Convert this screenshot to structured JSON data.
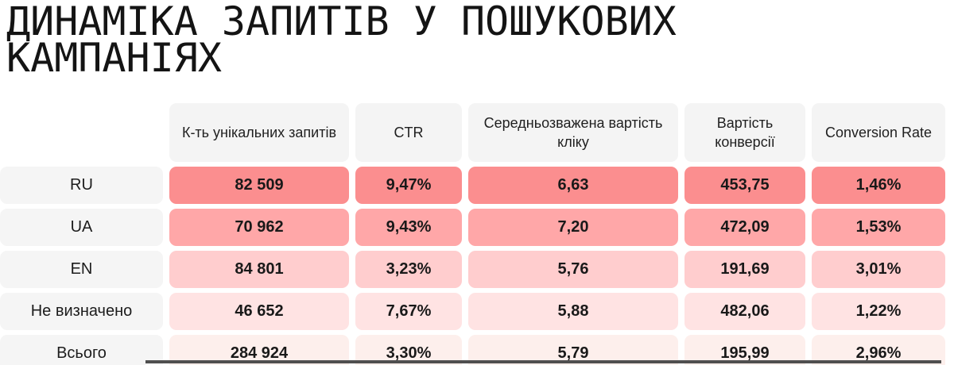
{
  "title": {
    "line1": "ДИНАМІКА ЗАПИТІВ У ПОШУКОВИХ",
    "line2": "КАМПАНІЯХ"
  },
  "table": {
    "columns": [
      "К-ть унікальних запитів",
      "CTR",
      "Середньозважена вартість кліку",
      "Вартість конверсії",
      "Conversion Rate"
    ],
    "rows": [
      {
        "label": "RU",
        "values": [
          "82 509",
          "9,47%",
          "6,63",
          "453,75",
          "1,46%"
        ],
        "heat_color": "#fb8e8f"
      },
      {
        "label": "UA",
        "values": [
          "70 962",
          "9,43%",
          "7,20",
          "472,09",
          "1,53%"
        ],
        "heat_color": "#ffa7a8"
      },
      {
        "label": "EN",
        "values": [
          "84 801",
          "3,23%",
          "5,76",
          "191,69",
          "3,01%"
        ],
        "heat_color": "#ffcdce"
      },
      {
        "label": "Не визначено",
        "values": [
          "46 652",
          "7,67%",
          "5,88",
          "482,06",
          "1,22%"
        ],
        "heat_color": "#ffe3e3"
      },
      {
        "label": "Всього",
        "values": [
          "284 924",
          "3,30%",
          "5,79",
          "195,99",
          "2,96%"
        ],
        "heat_color": "#fdefec"
      }
    ]
  },
  "colors": {
    "header_bg": "#f4f4f4",
    "label_bg": "#f5f5f5",
    "divider": "#4f4f4f",
    "heat_scale_high_to_low": [
      "#fb8e8f",
      "#ffa7a8",
      "#ffcdce",
      "#ffe3e3",
      "#fdefec"
    ]
  },
  "chart_data": {
    "type": "table",
    "title": "ДИНАМІКА ЗАПИТІВ У ПОШУКОВИХ КАМПАНІЯХ",
    "columns": [
      "К-ть унікальних запитів",
      "CTR",
      "Середньозважена вартість кліку",
      "Вартість конверсії",
      "Conversion Rate"
    ],
    "row_labels": [
      "RU",
      "UA",
      "EN",
      "Не визначено",
      "Всього"
    ],
    "rows": [
      [
        82509,
        9.47,
        6.63,
        453.75,
        1.46
      ],
      [
        70962,
        9.43,
        7.2,
        472.09,
        1.53
      ],
      [
        84801,
        3.23,
        5.76,
        191.69,
        3.01
      ],
      [
        46652,
        7.67,
        5.88,
        482.06,
        1.22
      ],
      [
        284924,
        3.3,
        5.79,
        195.99,
        2.96
      ]
    ],
    "units": [
      "count",
      "%",
      "currency",
      "currency",
      "%"
    ],
    "layout": "heatmap table, rows shaded from strongest (RU, salmon) to lightest (Всього, pale pink)"
  }
}
